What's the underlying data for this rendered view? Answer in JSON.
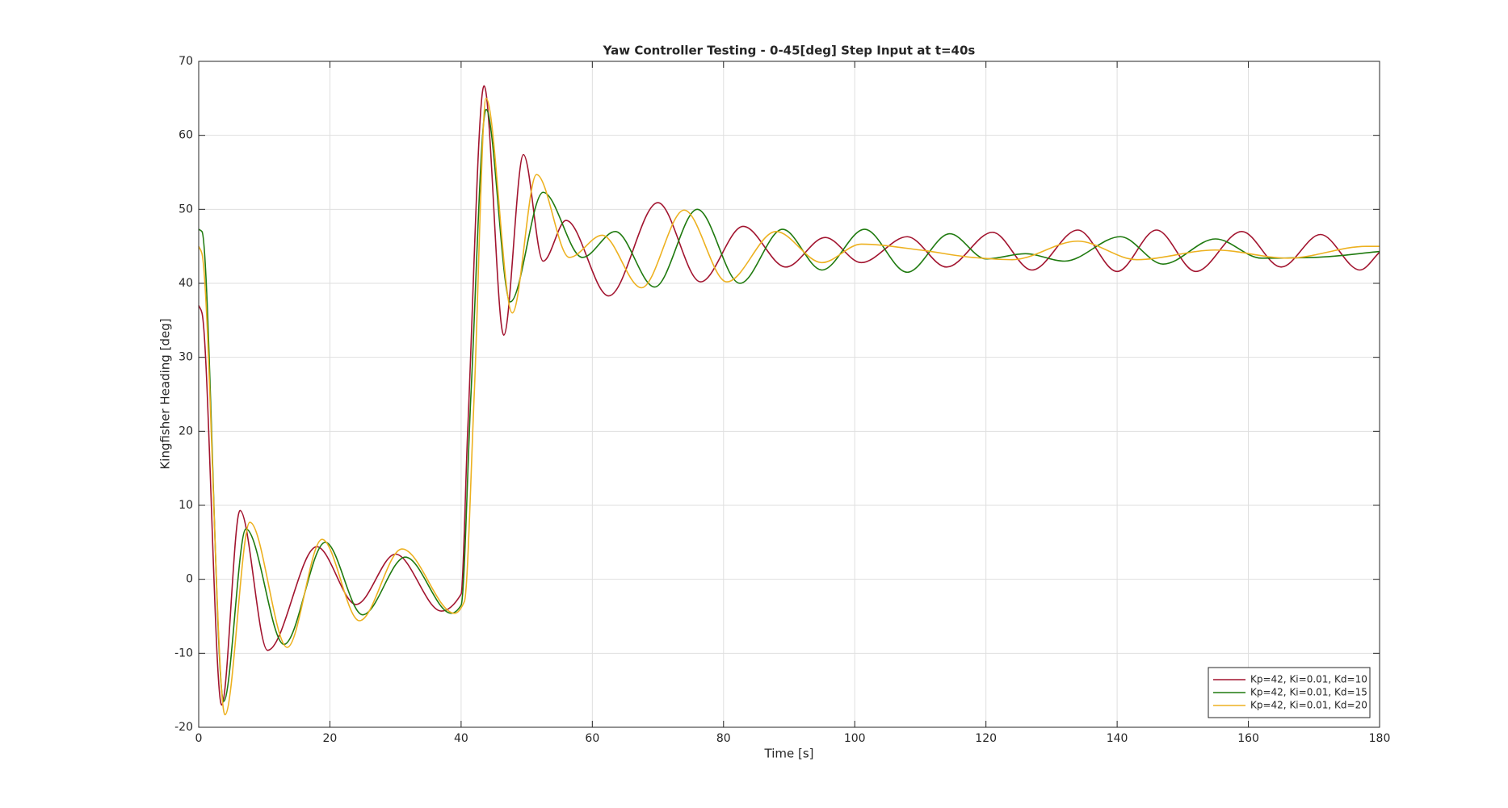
{
  "chart_data": {
    "type": "line",
    "title": "Yaw Controller Testing - 0-45[deg] Step Input at t=40s",
    "x_label": "Time [s]",
    "y_label": "Kingfisher Heading [deg]",
    "xlim": [
      0,
      180
    ],
    "xticks": [
      0,
      20,
      40,
      60,
      80,
      100,
      120,
      140,
      160,
      180
    ],
    "ylim": [
      -20,
      70
    ],
    "yticks": [
      -20,
      -10,
      0,
      10,
      20,
      30,
      40,
      50,
      60,
      70
    ],
    "grid": true,
    "legend": "southeast",
    "series": [
      {
        "name": "Kp=42, Ki=0.01, Kd=10",
        "color": "#a2142f",
        "x": [
          0,
          0.5,
          3.5,
          6.3,
          10.5,
          18,
          24,
          30,
          37,
          40,
          41,
          43.5,
          46.5,
          49.5,
          52.5,
          56,
          62.5,
          70,
          76.5,
          83,
          89.5,
          95.5,
          101,
          108,
          114,
          121,
          127,
          134,
          140,
          146,
          152,
          159,
          165,
          171,
          177,
          180
        ],
        "values": [
          37,
          36,
          -17,
          9.3,
          -9.6,
          4.4,
          -3.4,
          3.4,
          -4.3,
          -2,
          20,
          66.7,
          33,
          57.4,
          43,
          48.5,
          38.3,
          50.9,
          40.2,
          47.7,
          42.2,
          46.2,
          42.8,
          46.3,
          42.2,
          46.9,
          41.8,
          47.2,
          41.6,
          47.2,
          41.6,
          47,
          42.2,
          46.6,
          41.8,
          44.2
        ]
      },
      {
        "name": "Kp=42, Ki=0.01, Kd=15",
        "color": "#1f7a0f",
        "x": [
          0,
          0.5,
          3.8,
          7.2,
          13,
          19.3,
          25,
          31.5,
          38.5,
          40,
          41.5,
          43.8,
          47.5,
          52.5,
          58.5,
          63.5,
          69.5,
          76,
          82.5,
          89,
          95,
          101.5,
          108,
          114.5,
          120,
          126,
          132,
          140.5,
          147,
          155,
          162,
          170,
          180
        ],
        "values": [
          47.3,
          47,
          -16.5,
          6.8,
          -8.8,
          5,
          -4.8,
          3,
          -4.6,
          -3.5,
          25,
          63.5,
          37.5,
          52.3,
          43.5,
          47,
          39.5,
          50,
          40,
          47.3,
          41.8,
          47.3,
          41.5,
          46.7,
          43.3,
          44,
          43,
          46.3,
          42.6,
          46,
          43.4,
          43.5,
          44.3
        ]
      },
      {
        "name": "Kp=42, Ki=0.01, Kd=20",
        "color": "#edb120",
        "x": [
          0,
          0.5,
          4,
          7.8,
          13.5,
          18.8,
          24.5,
          31,
          39,
          40.5,
          42,
          43.8,
          47.8,
          51.5,
          56.5,
          61.5,
          67.5,
          74,
          80.5,
          88,
          95,
          101,
          110,
          118,
          124,
          134,
          143,
          155,
          166,
          178,
          180
        ],
        "values": [
          45,
          44,
          -18.3,
          7.7,
          -9.2,
          5.4,
          -5.6,
          4.1,
          -4.6,
          -3,
          25,
          65,
          36,
          54.7,
          43.5,
          46.5,
          39.4,
          49.9,
          40.2,
          47,
          42.8,
          45.3,
          44.5,
          43.5,
          43.2,
          45.7,
          43.2,
          44.5,
          43.4,
          45,
          45
        ]
      }
    ]
  }
}
